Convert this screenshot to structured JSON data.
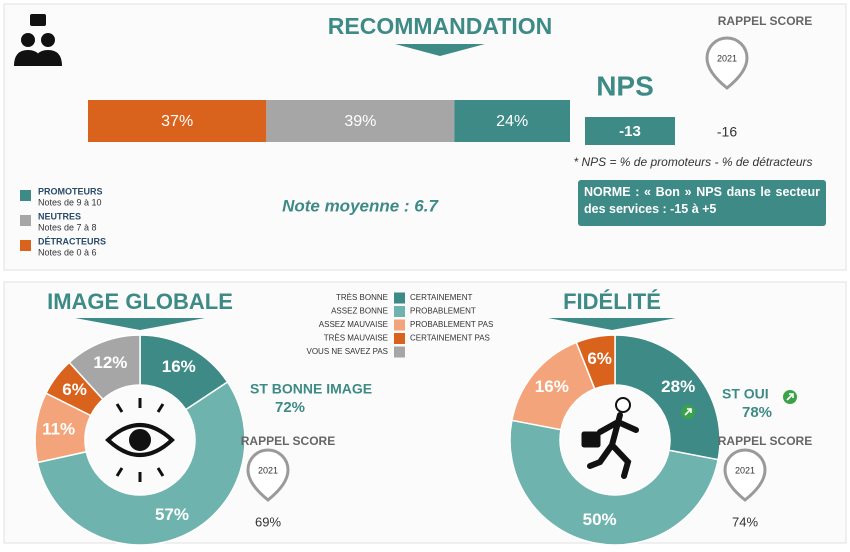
{
  "header": {
    "title": "RECOMMANDATION"
  },
  "nps_bar": {
    "values": [
      37,
      39,
      24
    ],
    "value_labels": [
      "37%",
      "39%",
      "24%"
    ],
    "colors": [
      "#d9621c",
      "#a6a6a6",
      "#3e8a86"
    ]
  },
  "nps": {
    "title": "NPS",
    "value": -13,
    "rappel_title": "RAPPEL SCORE",
    "rappel_year": "2021",
    "rappel_value": -16,
    "footnote": "* NPS = % de promoteurs - % de détracteurs",
    "average": "Note moyenne : 6.7",
    "norm": "NORME : « Bon » NPS dans le secteur des services : -15 à +5"
  },
  "legend": [
    {
      "name": "PROMOTEURS",
      "note": "Notes de 9 à 10",
      "color": "#3e8a86"
    },
    {
      "name": "NEUTRES",
      "note": "Notes de 7 à 8",
      "color": "#a6a6a6"
    },
    {
      "name": "DÉTRACTEURS",
      "note": "Notes de 0 à 6",
      "color": "#d9621c"
    }
  ],
  "scale_legend": {
    "image_labels": [
      "TRÈS BONNE",
      "ASSEZ BONNE",
      "ASSEZ MAUVAISE",
      "TRÈS MAUVAISE",
      "VOUS NE SAVEZ PAS"
    ],
    "fidelite_labels": [
      "CERTAINEMENT",
      "PROBABLEMENT",
      "PROBABLEMENT PAS",
      "CERTAINEMENT PAS"
    ],
    "colors": [
      "#3e8a86",
      "#6fb3ae",
      "#f4a47a",
      "#d9621c",
      "#a6a6a6"
    ]
  },
  "image_globale": {
    "title": "IMAGE GLOBALE",
    "values": [
      16,
      57,
      11,
      6,
      12
    ],
    "value_labels": [
      "16%",
      "57%",
      "11%",
      "6%",
      "12%"
    ],
    "colors": [
      "#3e8a86",
      "#6fb3ae",
      "#f4a47a",
      "#d9621c",
      "#a6a6a6"
    ],
    "summary_label": "ST BONNE IMAGE",
    "summary_value": "72%",
    "rappel_title": "RAPPEL SCORE",
    "rappel_year": "2021",
    "rappel_value": "69%"
  },
  "fidelite": {
    "title": "FIDÉLITÉ",
    "values": [
      28,
      50,
      16,
      6
    ],
    "value_labels": [
      "28%",
      "50%",
      "16%",
      "6%"
    ],
    "colors": [
      "#3e8a86",
      "#6fb3ae",
      "#f4a47a",
      "#d9621c"
    ],
    "summary_label": "ST OUI",
    "summary_value": "78%",
    "rappel_title": "RAPPEL SCORE",
    "rappel_year": "2021",
    "rappel_value": "74%"
  }
}
